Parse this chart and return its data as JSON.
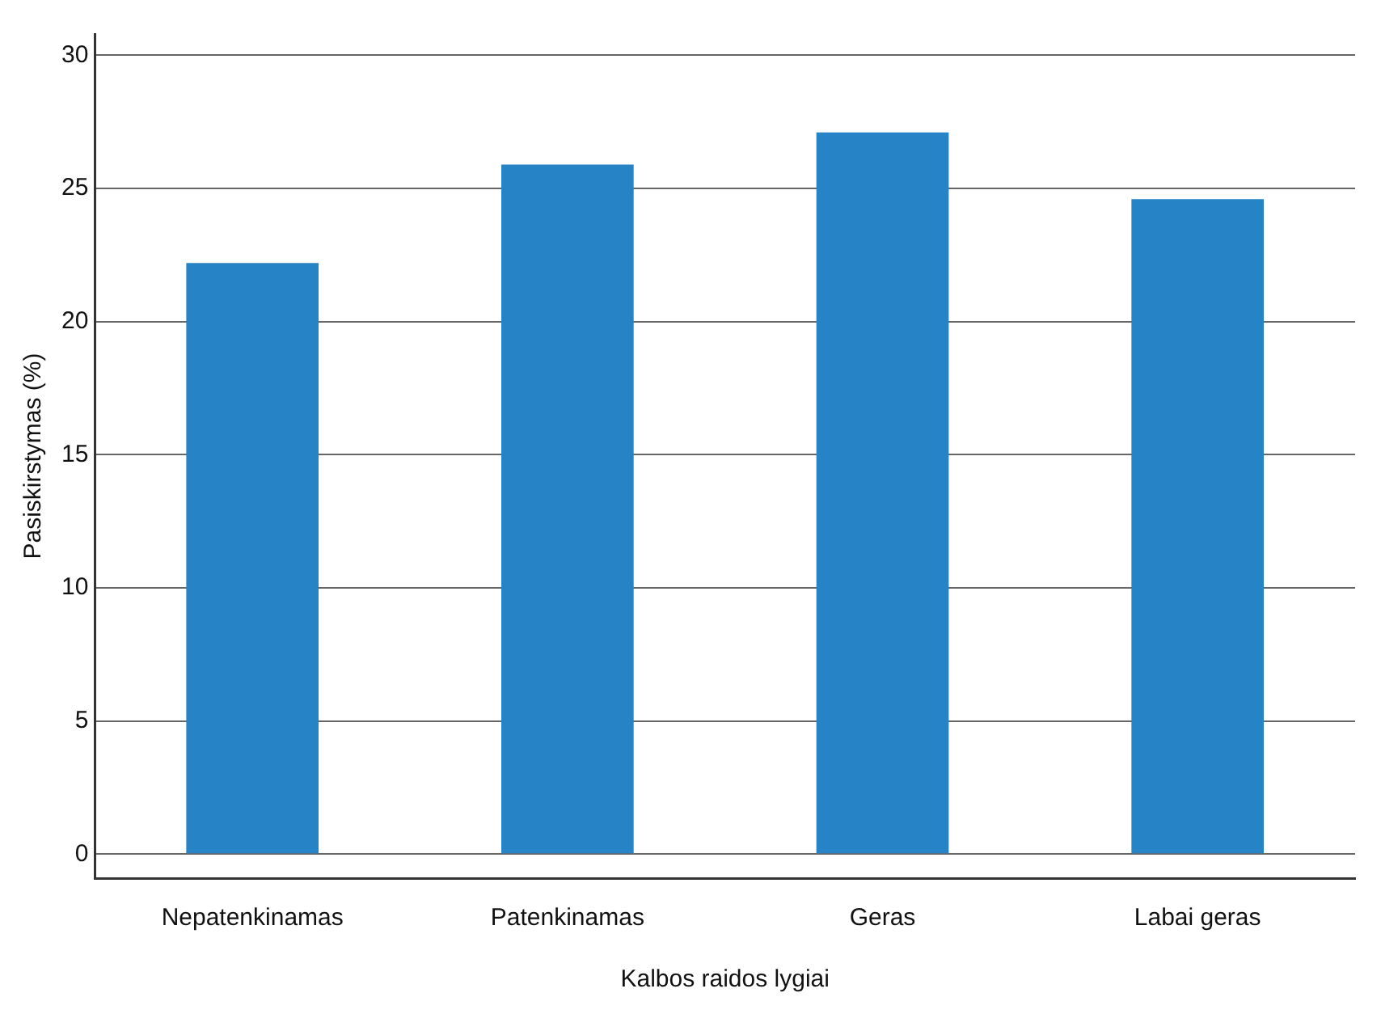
{
  "chart_data": {
    "type": "bar",
    "xlabel": "Kalbos raidos lygiai",
    "ylabel": "Pasiskirstymas (%)",
    "categories": [
      "Nepatenkinamas",
      "Patenkinamas",
      "Geras",
      "Labai geras"
    ],
    "values": [
      22.2,
      25.9,
      27.1,
      24.6
    ],
    "color": "#2683c6",
    "ylim": [
      -0.9,
      30.8
    ],
    "yticks": [
      0,
      5,
      10,
      15,
      20,
      25,
      30
    ],
    "grid": "y"
  }
}
